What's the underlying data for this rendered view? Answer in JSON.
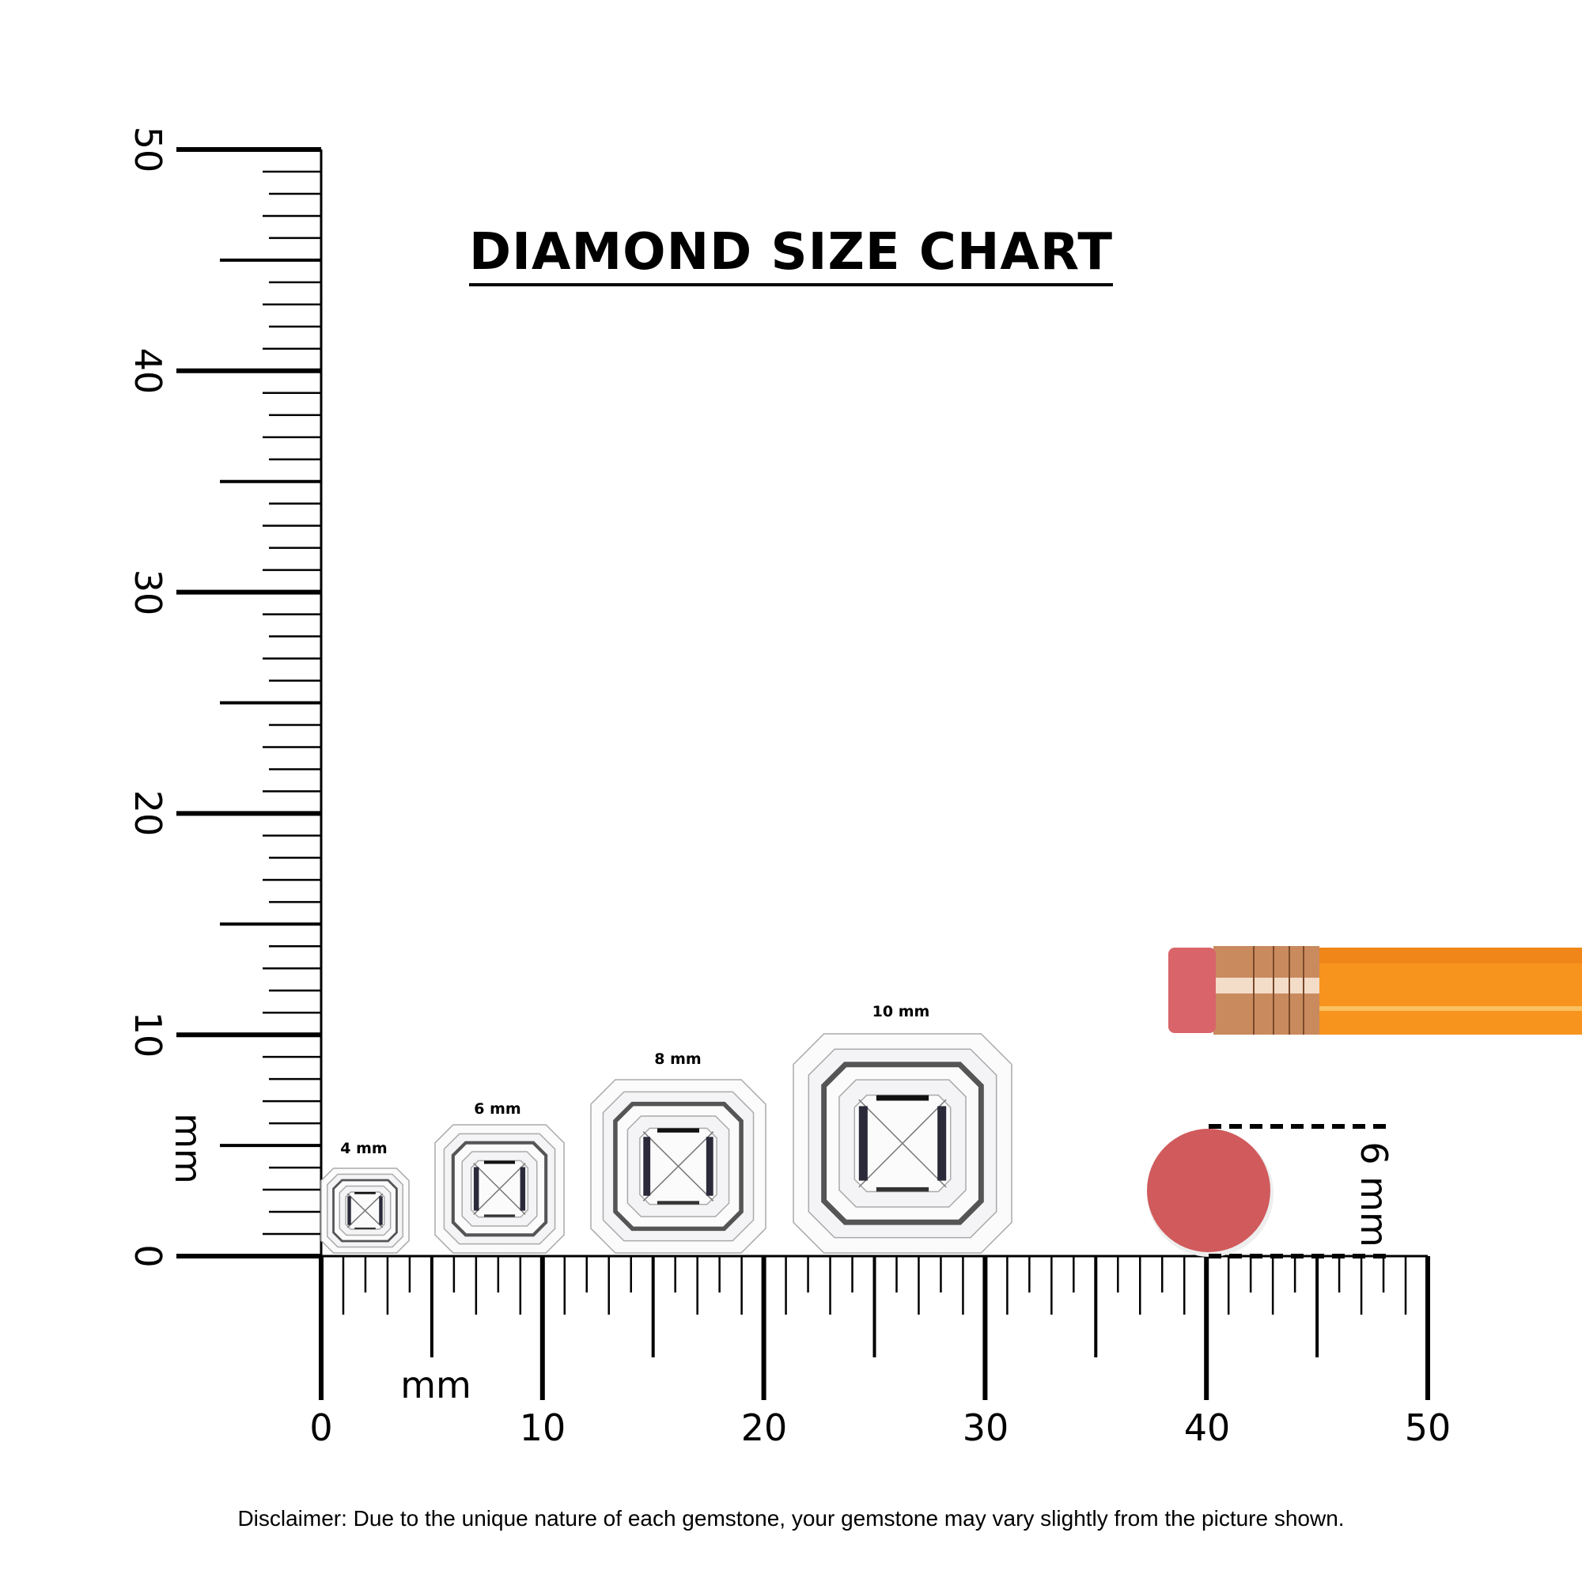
{
  "title": "DIAMOND SIZE CHART",
  "disclaimer": "Disclaimer: Due to the unique nature of each gemstone, your gemstone may vary slightly from the picture shown.",
  "vertical_ruler": {
    "unit": "mm",
    "range": [
      0,
      50
    ],
    "tick_labels": [
      "0",
      "10",
      "20",
      "30",
      "40",
      "50"
    ]
  },
  "horizontal_ruler": {
    "unit": "mm",
    "range": [
      0,
      50
    ],
    "tick_labels": [
      "0",
      "10",
      "20",
      "30",
      "40",
      "50"
    ]
  },
  "diamonds": [
    {
      "label": "4 mm",
      "size_mm": 4
    },
    {
      "label": "6 mm",
      "size_mm": 6
    },
    {
      "label": "8 mm",
      "size_mm": 8
    },
    {
      "label": "10 mm",
      "size_mm": 10
    }
  ],
  "eraser": {
    "label": "6 mm",
    "size_mm": 6,
    "color": "#d05a5c"
  },
  "colors": {
    "pencil_body": "#f7941d",
    "ferrule": "#c98a5e",
    "pencil_eraser": "#d9646a"
  }
}
